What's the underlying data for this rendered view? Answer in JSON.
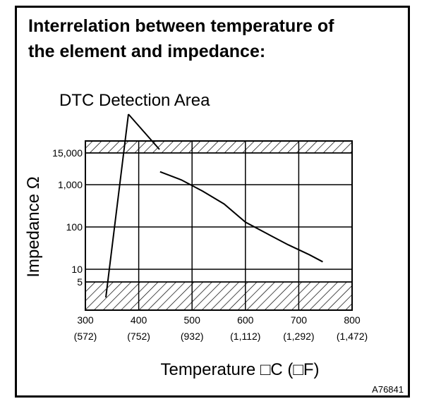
{
  "title_line1": "Interrelation between temperature of",
  "title_line2": "the element and impedance:",
  "figure_id": "A76841",
  "chart_data": {
    "type": "line",
    "annotation": "DTC Detection Area",
    "xlabel": "Temperature □C (□F)",
    "ylabel": "Impedance Ω",
    "xlim": [
      300,
      800
    ],
    "x_ticks": [
      300,
      400,
      500,
      600,
      700,
      800
    ],
    "x_tick_labels": [
      "300",
      "400",
      "500",
      "600",
      "700",
      "800"
    ],
    "x_tick_labels_f": [
      "(572)",
      "(752)",
      "(932)",
      "(1,112)",
      "(1,292)",
      "(1,472)"
    ],
    "y_ticks": [
      5,
      10,
      100,
      1000,
      15000
    ],
    "y_tick_labels": [
      "5",
      "10",
      "100",
      "1,000",
      "15,000"
    ],
    "y_scale": "log",
    "grid": true,
    "detection_areas": [
      {
        "name": "high",
        "from": 15000,
        "to": 25000
      },
      {
        "name": "low",
        "from": 1.5,
        "to": 5
      }
    ],
    "series": [
      {
        "x": [
          440,
          480,
          520,
          560,
          600,
          640,
          680,
          720,
          745
        ],
        "y": [
          3000,
          1500,
          700,
          350,
          130,
          70,
          38,
          22,
          15
        ]
      }
    ]
  }
}
